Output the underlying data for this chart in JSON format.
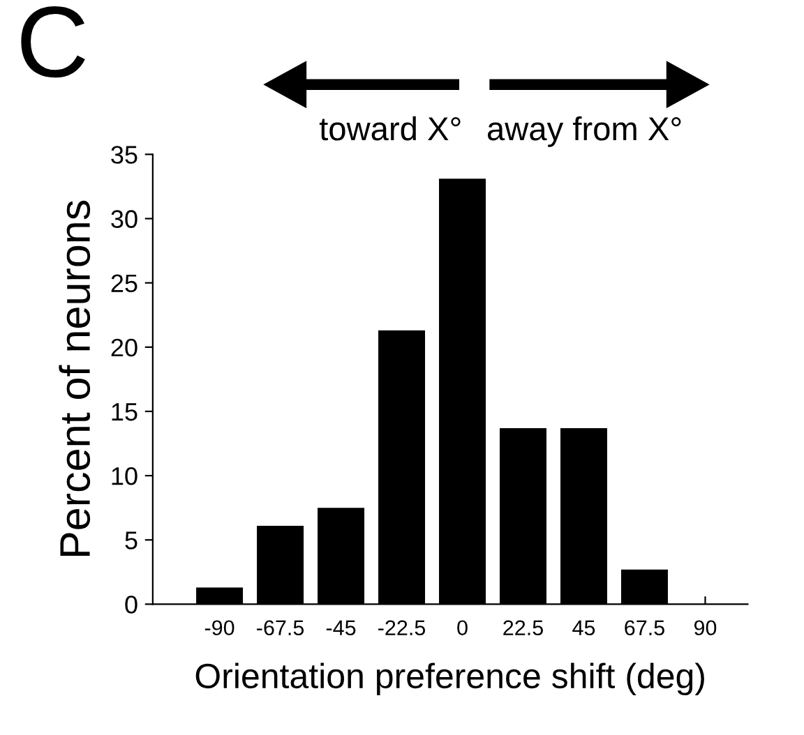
{
  "chart_data": {
    "type": "bar",
    "xlabel": "Orientation preference shift (deg)",
    "ylabel": "Percent of neurons",
    "categories": [
      "-90",
      "-67.5",
      "-45",
      "-22.5",
      "0",
      "22.5",
      "45",
      "67.5",
      "90"
    ],
    "values": [
      1.3,
      6.1,
      7.5,
      21.3,
      33.1,
      13.7,
      13.7,
      2.7,
      0
    ],
    "color": "#000000",
    "ylim": [
      0,
      35
    ],
    "yticks": [
      0,
      5,
      10,
      15,
      20,
      25,
      30,
      35
    ],
    "grid": false,
    "legend": false,
    "annotations": [
      "C",
      "toward X°",
      "away from X°"
    ]
  }
}
